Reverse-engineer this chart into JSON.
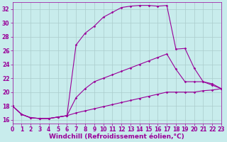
{
  "xlabel": "Windchill (Refroidissement éolien,°C)",
  "xlim": [
    0,
    23
  ],
  "ylim": [
    15.5,
    33
  ],
  "xticks": [
    0,
    1,
    2,
    3,
    4,
    5,
    6,
    7,
    8,
    9,
    10,
    11,
    12,
    13,
    14,
    15,
    16,
    17,
    18,
    19,
    20,
    21,
    22,
    23
  ],
  "yticks": [
    16,
    18,
    20,
    22,
    24,
    26,
    28,
    30,
    32
  ],
  "bg_color": "#c8ecec",
  "line_color": "#990099",
  "grid_color": "#aacccc",
  "line1_x": [
    0,
    1,
    2,
    3,
    4,
    5,
    6,
    7,
    8,
    9,
    10,
    11,
    12,
    13,
    14,
    15,
    16,
    17,
    18,
    19,
    20,
    21,
    22,
    23
  ],
  "line1_y": [
    18.0,
    16.8,
    16.3,
    16.2,
    16.2,
    16.4,
    16.6,
    26.8,
    28.5,
    29.5,
    30.8,
    31.5,
    32.2,
    32.4,
    32.5,
    32.5,
    32.4,
    32.5,
    26.2,
    26.3,
    23.5,
    21.5,
    21.2,
    20.5
  ],
  "line2_x": [
    0,
    1,
    2,
    3,
    4,
    5,
    6,
    7,
    8,
    9,
    10,
    11,
    12,
    13,
    14,
    15,
    16,
    17,
    18,
    19,
    20,
    21,
    22,
    23
  ],
  "line2_y": [
    18.0,
    16.8,
    16.3,
    16.2,
    16.2,
    16.4,
    16.6,
    19.2,
    20.5,
    21.5,
    22.0,
    22.5,
    23.0,
    23.5,
    24.0,
    24.5,
    25.0,
    25.5,
    23.3,
    21.5,
    21.5,
    21.5,
    21.0,
    20.5
  ],
  "line3_x": [
    0,
    1,
    2,
    3,
    4,
    5,
    6,
    7,
    8,
    9,
    10,
    11,
    12,
    13,
    14,
    15,
    16,
    17,
    18,
    19,
    20,
    21,
    22,
    23
  ],
  "line3_y": [
    18.0,
    16.8,
    16.3,
    16.2,
    16.2,
    16.4,
    16.6,
    17.0,
    17.3,
    17.6,
    17.9,
    18.2,
    18.5,
    18.8,
    19.1,
    19.4,
    19.7,
    20.0,
    20.0,
    20.0,
    20.0,
    20.2,
    20.3,
    20.5
  ],
  "marker": "D",
  "markersize": 1.8,
  "linewidth": 0.8,
  "tick_fontsize": 5.5,
  "xlabel_fontsize": 6.5
}
